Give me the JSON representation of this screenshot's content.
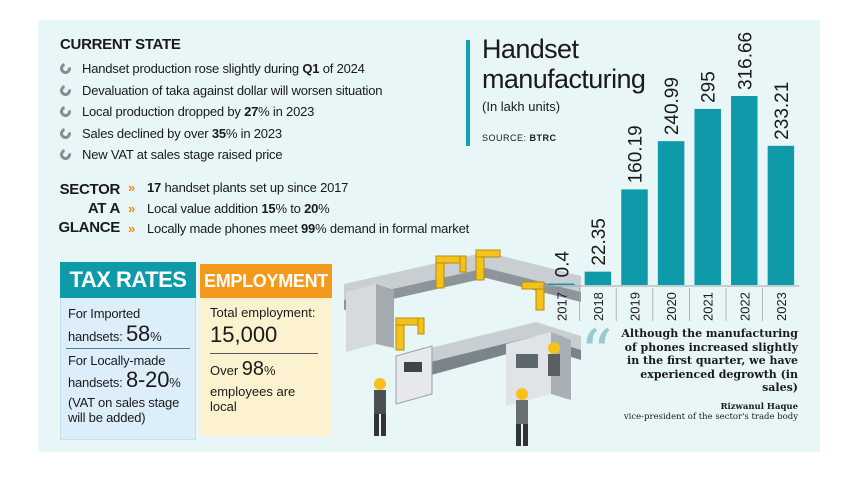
{
  "current_state": {
    "heading": "CURRENT STATE",
    "items": [
      {
        "pre": "Handset production rose slightly during ",
        "bold": "Q1",
        "post": " of 2024"
      },
      {
        "pre": "Devaluation of taka against dollar will worsen situation",
        "bold": "",
        "post": ""
      },
      {
        "pre": "Local production dropped by ",
        "bold": "27",
        "post": "% in 2023"
      },
      {
        "pre": "Sales declined by over ",
        "bold": "35",
        "post": "% in 2023"
      },
      {
        "pre": "New VAT at sales stage raised price",
        "bold": "",
        "post": ""
      }
    ]
  },
  "sector_at_a_glance": {
    "label": [
      "SECTOR",
      "AT A",
      "GLANCE"
    ],
    "items": [
      {
        "pre": "",
        "bold": "17",
        "post": " handset plants set up since 2017"
      },
      {
        "pre": "Local value addition ",
        "bold": "15",
        "post": "% to ",
        "bold2": "20",
        "post2": "%"
      },
      {
        "pre": "Locally made phones meet ",
        "bold": "99",
        "post": "% demand in formal market"
      }
    ]
  },
  "tax_rates": {
    "heading": "TAX RATES",
    "imported_line1": "For Imported",
    "imported_line2": "handsets:",
    "imported_value": "58",
    "imported_unit": "%",
    "local_line1": "For Locally-made",
    "local_line2": "handsets:",
    "local_value": "8-20",
    "local_unit": "%",
    "note": "(VAT on sales stage will be added)"
  },
  "employment": {
    "heading": "EMPLOYMENT",
    "total_label": "Total employment:",
    "total_value": "15,000",
    "over_prefix": "Over",
    "over_value": "98",
    "over_unit": "%",
    "over_suffix": "employees are local"
  },
  "chart_data": {
    "type": "bar",
    "title": "Handset manufacturing",
    "subtitle": "(In lakh units)",
    "source_label": "SOURCE:",
    "source": "BTRC",
    "categories": [
      "2017",
      "2018",
      "2019",
      "2020",
      "2021",
      "2022",
      "2023"
    ],
    "values": [
      0.4,
      22.35,
      160.19,
      240.99,
      295,
      316.66,
      233.21
    ],
    "value_labels": [
      "0.4",
      "22.35",
      "160.19",
      "240.99",
      "295",
      "316.66",
      "233.21"
    ],
    "bar_color": "#0e9aa9",
    "ylim": [
      0,
      316.66
    ]
  },
  "quote": {
    "mark": "“",
    "text": "Although the manufacturing of phones increased slightly in the first quarter, we have experienced degrowth (in sales)",
    "name": "Rizwanul Haque",
    "role": "vice-president of the sector's trade body"
  },
  "colors": {
    "panel": "#e9f6f7",
    "teal": "#0e9aa9",
    "orange": "#f39a1d",
    "tax_bg": "#ddeefb",
    "emp_bg": "#fdf2cf"
  }
}
